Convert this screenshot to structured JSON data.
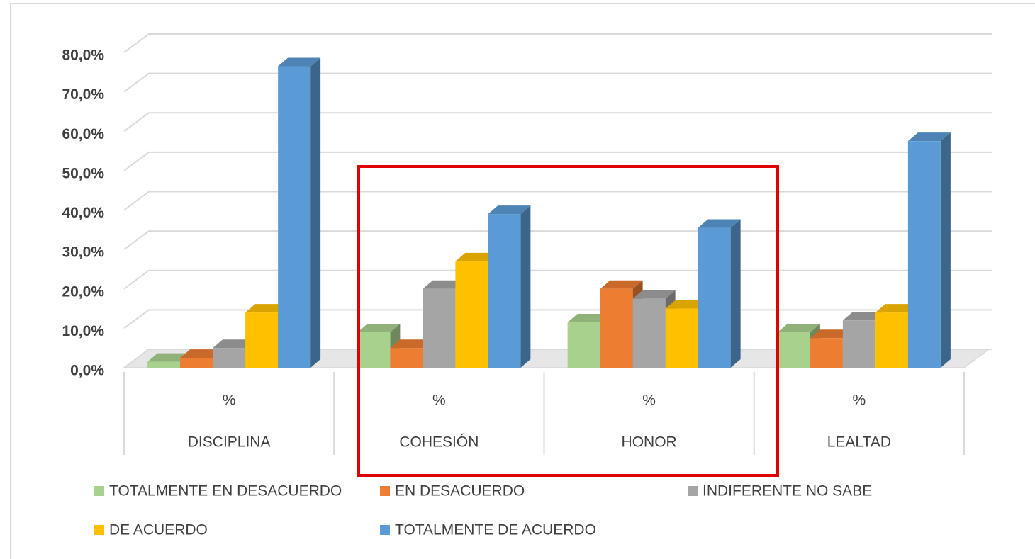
{
  "chart_data": {
    "type": "bar3d",
    "categories": [
      "DISCIPLINA",
      "COHESIÓN",
      "HONOR",
      "LEALTAD"
    ],
    "sublabels": [
      "%",
      "%",
      "%",
      "%"
    ],
    "series": [
      {
        "name": "TOTALMENTE EN DESACUERDO",
        "color": "#a9d18e",
        "values": [
          1.5,
          9,
          11.5,
          9
        ]
      },
      {
        "name": "EN DESACUERDO",
        "color": "#ed7d31",
        "values": [
          2.5,
          5,
          20,
          7.5
        ]
      },
      {
        "name": "INDIFERENTE NO SABE",
        "color": "#a5a5a5",
        "values": [
          5,
          20,
          17.5,
          12
        ]
      },
      {
        "name": "DE ACUERDO",
        "color": "#ffc000",
        "values": [
          14,
          27,
          15,
          14
        ]
      },
      {
        "name": "TOTALMENTE DE ACUERDO",
        "color": "#5b9bd5",
        "values": [
          76.5,
          39,
          35.5,
          57.5
        ]
      }
    ],
    "ylim": [
      0,
      80
    ],
    "yticks": [
      {
        "value": 0,
        "label": "0,0%"
      },
      {
        "value": 10,
        "label": "10,0%"
      },
      {
        "value": 20,
        "label": "20,0%"
      },
      {
        "value": 30,
        "label": "30,0%"
      },
      {
        "value": 40,
        "label": "40,0%"
      },
      {
        "value": 50,
        "label": "50,0%"
      },
      {
        "value": 60,
        "label": "60,0%"
      },
      {
        "value": 70,
        "label": "70,0%"
      },
      {
        "value": 80,
        "label": "80,0%"
      }
    ],
    "grid": true
  }
}
